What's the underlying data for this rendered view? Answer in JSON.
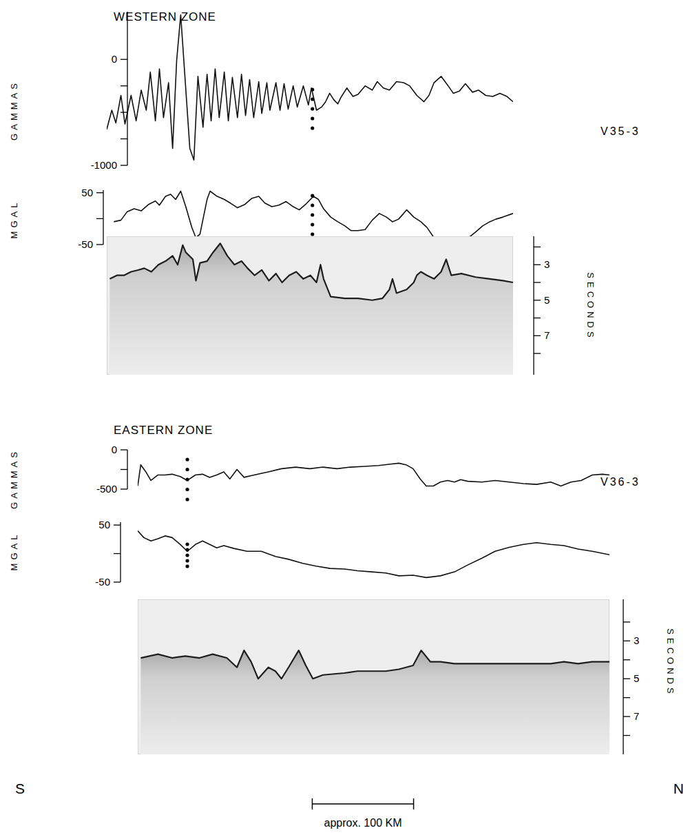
{
  "chart_data": [
    {
      "type": "line",
      "title": "WESTERN ZONE",
      "y_label": "GAMMAS",
      "annotation": "V35-3",
      "xlim": [
        0,
        401
      ],
      "ylim": [
        -1000,
        450
      ],
      "yticks": [
        0,
        -1000
      ],
      "minor_yticks": [
        -250,
        -500,
        -750
      ],
      "tick_labels": "y",
      "boundary_x": 203,
      "x": [
        0,
        5,
        9,
        14,
        18,
        24,
        29,
        34,
        39,
        43,
        48,
        52,
        56,
        61,
        65,
        69,
        73,
        77,
        82,
        86,
        90,
        95,
        99,
        103,
        107,
        111,
        116,
        120,
        124,
        129,
        133,
        137,
        141,
        145,
        150,
        153,
        158,
        161,
        167,
        171,
        175,
        179,
        184,
        188,
        194,
        199,
        202,
        207,
        212,
        216,
        220,
        224,
        228,
        231,
        237,
        243,
        248,
        255,
        262,
        267,
        273,
        279,
        286,
        293,
        299,
        306,
        313,
        318,
        323,
        330,
        337,
        342,
        348,
        354,
        361,
        367,
        374,
        381,
        388,
        395,
        401
      ],
      "values": [
        -660,
        -480,
        -600,
        -340,
        -610,
        -340,
        -580,
        -290,
        -480,
        -120,
        -580,
        -90,
        -550,
        -220,
        -840,
        -10,
        420,
        -140,
        -840,
        -950,
        -160,
        -640,
        -140,
        -580,
        -90,
        -550,
        -120,
        -580,
        -170,
        -550,
        -140,
        -530,
        -190,
        -550,
        -210,
        -510,
        -220,
        -480,
        -220,
        -480,
        -230,
        -470,
        -250,
        -450,
        -250,
        -430,
        -270,
        -480,
        -450,
        -400,
        -320,
        -380,
        -420,
        -360,
        -270,
        -350,
        -330,
        -250,
        -290,
        -210,
        -270,
        -290,
        -210,
        -220,
        -250,
        -340,
        -400,
        -340,
        -220,
        -160,
        -250,
        -320,
        -300,
        -230,
        -310,
        -290,
        -340,
        -350,
        -320,
        -350,
        -400
      ]
    },
    {
      "type": "line",
      "y_label": "MGAL",
      "xlim": [
        0,
        401
      ],
      "ylim": [
        -50,
        55
      ],
      "yticks": [
        50,
        -50
      ],
      "minor_yticks": [
        0
      ],
      "tick_labels": "y",
      "boundary_x": 203,
      "x": [
        7,
        14,
        20,
        27,
        34,
        41,
        48,
        52,
        58,
        63,
        68,
        73,
        78,
        84,
        88,
        92,
        99,
        102,
        109,
        116,
        122,
        129,
        136,
        143,
        150,
        156,
        163,
        170,
        177,
        184,
        190,
        197,
        204,
        209,
        214,
        221,
        228,
        235,
        241,
        248,
        255,
        262,
        269,
        276,
        282,
        288,
        293,
        296,
        303,
        310,
        316,
        322,
        327,
        333,
        357,
        364,
        371,
        378,
        384,
        391,
        401
      ],
      "values": [
        -6,
        -3,
        13,
        19,
        15,
        27,
        34,
        26,
        43,
        47,
        37,
        53,
        23,
        -17,
        -37,
        -30,
        37,
        53,
        43,
        37,
        30,
        21,
        27,
        39,
        43,
        30,
        23,
        26,
        33,
        23,
        17,
        29,
        43,
        37,
        19,
        3,
        -6,
        -14,
        -23,
        -23,
        -21,
        -3,
        10,
        3,
        -6,
        -1,
        10,
        17,
        3,
        -6,
        -17,
        -34,
        -50,
        -45,
        -37,
        -26,
        -14,
        -6,
        -1,
        3,
        10
      ]
    },
    {
      "type": "seismic",
      "y_label": "SECONDS",
      "xlim": [
        0,
        401
      ],
      "ylim": [
        9.2,
        1.4
      ],
      "yticks": [
        3,
        5,
        7
      ],
      "minor_yticks": [
        2,
        4,
        6,
        8
      ],
      "tick_labels": "y",
      "x": [
        3,
        10,
        17,
        24,
        31,
        37,
        44,
        51,
        58,
        65,
        70,
        75,
        78,
        85,
        88,
        92,
        99,
        105,
        112,
        119,
        126,
        133,
        139,
        146,
        153,
        160,
        167,
        173,
        180,
        187,
        194,
        201,
        207,
        211,
        214,
        221,
        235,
        248,
        262,
        272,
        279,
        282,
        286,
        296,
        303,
        306,
        310,
        316,
        323,
        330,
        335,
        340,
        350,
        364,
        378,
        391,
        401
      ],
      "values": [
        3.8,
        3.6,
        3.6,
        3.4,
        3.3,
        3.2,
        3.4,
        3.0,
        2.8,
        2.5,
        3.0,
        1.9,
        2.3,
        2.7,
        3.9,
        2.9,
        2.8,
        2.3,
        1.8,
        2.5,
        3.0,
        2.8,
        3.2,
        3.6,
        3.3,
        3.9,
        3.5,
        4.0,
        3.6,
        3.4,
        3.8,
        3.6,
        4.0,
        3.0,
        3.8,
        4.8,
        4.9,
        4.9,
        5.0,
        4.9,
        4.4,
        3.8,
        4.6,
        4.4,
        4.0,
        3.6,
        3.4,
        3.6,
        3.8,
        3.4,
        2.7,
        3.6,
        3.5,
        3.7,
        3.8,
        3.9,
        4.0
      ]
    },
    {
      "type": "line",
      "title": "EASTERN ZONE",
      "y_label": "GAMMAS",
      "annotation": "V36-3",
      "xlim": [
        31,
        497
      ],
      "ylim": [
        -500,
        0
      ],
      "yticks": [
        0,
        -500
      ],
      "minor_yticks": [
        -250
      ],
      "tick_labels": "y",
      "boundary_x": 80,
      "x": [
        31,
        34,
        39,
        44,
        51,
        58,
        65,
        73,
        80,
        88,
        95,
        102,
        109,
        116,
        122,
        129,
        136,
        146,
        160,
        173,
        187,
        201,
        214,
        228,
        241,
        255,
        269,
        282,
        289,
        296,
        303,
        310,
        316,
        323,
        330,
        337,
        344,
        350,
        357,
        371,
        384,
        398,
        412,
        425,
        439,
        449,
        459,
        469,
        480,
        490,
        497
      ],
      "values": [
        -460,
        -190,
        -280,
        -390,
        -320,
        -320,
        -310,
        -340,
        -390,
        -320,
        -310,
        -350,
        -320,
        -280,
        -370,
        -250,
        -350,
        -320,
        -280,
        -240,
        -220,
        -240,
        -220,
        -240,
        -220,
        -210,
        -200,
        -180,
        -170,
        -190,
        -240,
        -370,
        -460,
        -460,
        -410,
        -390,
        -410,
        -380,
        -400,
        -410,
        -390,
        -410,
        -430,
        -440,
        -410,
        -460,
        -410,
        -390,
        -320,
        -310,
        -320
      ]
    },
    {
      "type": "line",
      "y_label": "MGAL",
      "xlim": [
        31,
        497
      ],
      "ylim": [
        -50,
        55
      ],
      "yticks": [
        50,
        -50
      ],
      "minor_yticks": [
        0
      ],
      "tick_labels": "y",
      "boundary_x": 80,
      "x": [
        31,
        37,
        44,
        51,
        58,
        65,
        73,
        80,
        88,
        95,
        102,
        109,
        116,
        126,
        139,
        153,
        167,
        180,
        194,
        207,
        221,
        235,
        248,
        262,
        276,
        289,
        303,
        316,
        330,
        344,
        357,
        371,
        384,
        398,
        412,
        425,
        439,
        452,
        466,
        480,
        497
      ],
      "values": [
        40,
        28,
        22,
        26,
        31,
        28,
        16,
        4,
        16,
        22,
        16,
        10,
        14,
        9,
        4,
        4,
        -5,
        -10,
        -17,
        -22,
        -26,
        -27,
        -30,
        -32,
        -34,
        -39,
        -38,
        -42,
        -39,
        -32,
        -20,
        -8,
        4,
        11,
        16,
        19,
        16,
        14,
        8,
        4,
        -2
      ]
    },
    {
      "type": "seismic",
      "y_label": "SECONDS",
      "xlim": [
        31,
        497
      ],
      "ylim": [
        9.0,
        0.8
      ],
      "yticks": [
        3,
        5,
        7
      ],
      "minor_yticks": [
        2,
        4,
        6,
        8
      ],
      "tick_labels": "y",
      "x": [
        34,
        51,
        65,
        78,
        92,
        105,
        119,
        129,
        136,
        143,
        150,
        160,
        167,
        173,
        180,
        190,
        197,
        204,
        214,
        235,
        248,
        262,
        276,
        289,
        303,
        311,
        320,
        330,
        344,
        357,
        371,
        384,
        398,
        412,
        425,
        439,
        452,
        466,
        480,
        497
      ],
      "values": [
        3.9,
        3.7,
        3.9,
        3.8,
        3.9,
        3.7,
        3.9,
        4.4,
        3.5,
        4.1,
        5.0,
        4.4,
        4.6,
        5.0,
        4.4,
        3.5,
        4.3,
        5.0,
        4.8,
        4.7,
        4.6,
        4.6,
        4.6,
        4.5,
        4.3,
        3.5,
        4.1,
        4.1,
        4.2,
        4.2,
        4.2,
        4.2,
        4.2,
        4.2,
        4.2,
        4.2,
        4.1,
        4.2,
        4.1,
        4.1
      ]
    }
  ],
  "figure": {
    "directions": [
      "S",
      "N"
    ],
    "scale_bar": {
      "length": 100,
      "label": "approx. 100 KM"
    }
  }
}
